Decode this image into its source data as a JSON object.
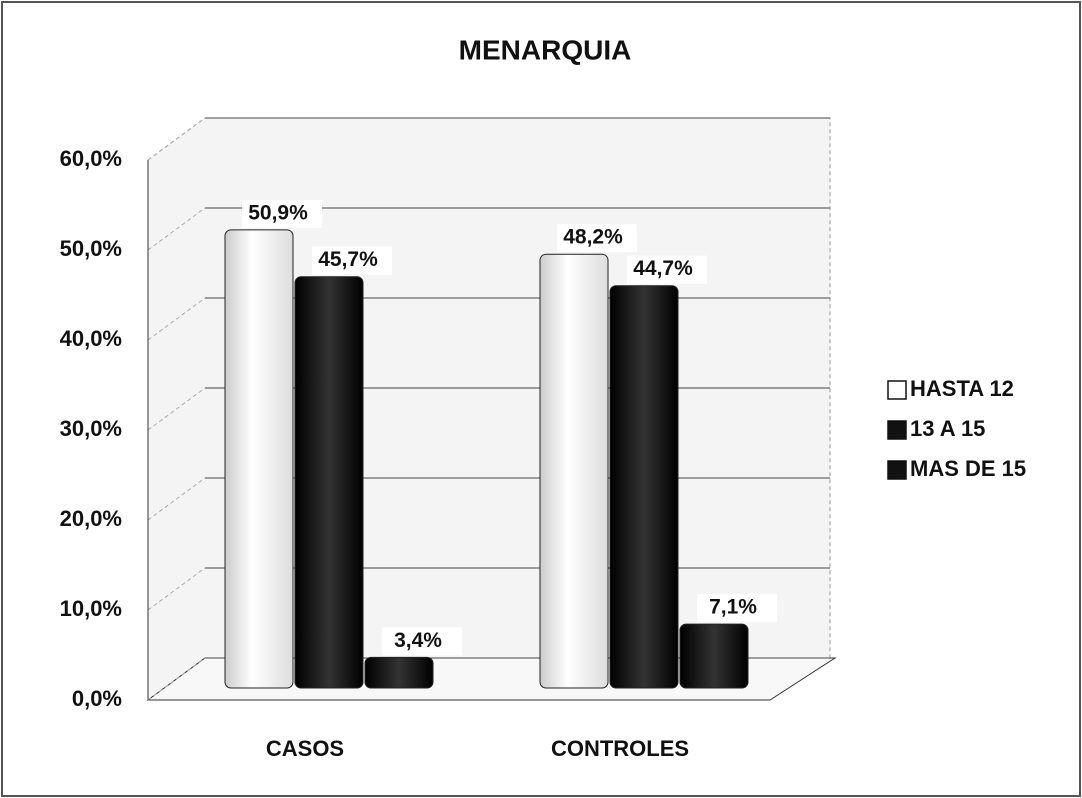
{
  "chart_data": {
    "type": "bar",
    "title": "MENARQUIA",
    "categories": [
      "CASOS",
      "CONTROLES"
    ],
    "series": [
      {
        "name": "HASTA 12",
        "color": "#ffffff",
        "values": [
          50.9,
          48.2
        ],
        "value_labels": [
          "50,9%",
          "48,2%"
        ]
      },
      {
        "name": "13 A 15",
        "color": "#111111",
        "values": [
          45.7,
          44.7
        ],
        "value_labels": [
          "45,7%",
          "44,7%"
        ]
      },
      {
        "name": "MAS DE 15",
        "color": "#111111",
        "values": [
          3.4,
          7.1
        ],
        "value_labels": [
          "3,4%",
          "7,1%"
        ]
      }
    ],
    "ylim": [
      0,
      60
    ],
    "yticks": [
      {
        "value": 0,
        "label": "0,0%"
      },
      {
        "value": 10,
        "label": "10,0%"
      },
      {
        "value": 20,
        "label": "20,0%"
      },
      {
        "value": 30,
        "label": "30,0%"
      },
      {
        "value": 40,
        "label": "40,0%"
      },
      {
        "value": 50,
        "label": "50,0%"
      },
      {
        "value": 60,
        "label": "60,0%"
      }
    ],
    "grid": true,
    "legend": "right"
  }
}
